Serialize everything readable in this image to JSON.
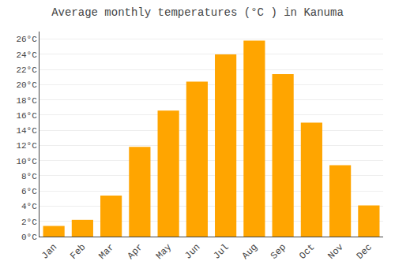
{
  "chart_data": {
    "type": "bar",
    "title": "Average monthly temperatures (°C ) in Kanuma",
    "categories": [
      "Jan",
      "Feb",
      "Mar",
      "Apr",
      "May",
      "Jun",
      "Jul",
      "Aug",
      "Sep",
      "Oct",
      "Nov",
      "Dec"
    ],
    "values": [
      1.4,
      2.2,
      5.4,
      11.8,
      16.6,
      20.4,
      24.0,
      25.8,
      21.4,
      15.0,
      9.4,
      4.1
    ],
    "color": "#FFA500",
    "ylim": [
      0,
      27
    ],
    "yticks": [
      {
        "value": 0,
        "label": "0°C"
      },
      {
        "value": 2,
        "label": "2°C"
      },
      {
        "value": 4,
        "label": "4°C"
      },
      {
        "value": 6,
        "label": "6°C"
      },
      {
        "value": 8,
        "label": "8°C"
      },
      {
        "value": 10,
        "label": "10°C"
      },
      {
        "value": 12,
        "label": "12°C"
      },
      {
        "value": 14,
        "label": "14°C"
      },
      {
        "value": 16,
        "label": "16°C"
      },
      {
        "value": 18,
        "label": "18°C"
      },
      {
        "value": 20,
        "label": "20°C"
      },
      {
        "value": 22,
        "label": "22°C"
      },
      {
        "value": 24,
        "label": "24°C"
      },
      {
        "value": 26,
        "label": "26°C"
      }
    ],
    "grid": true
  }
}
